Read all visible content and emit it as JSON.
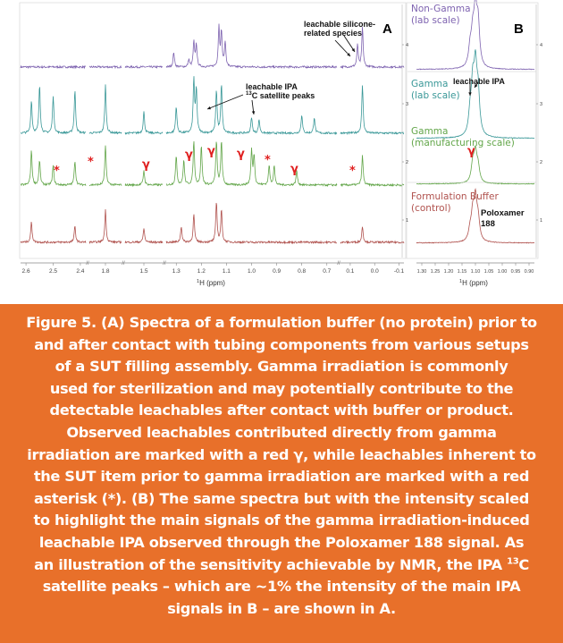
{
  "figure": {
    "panel_a_letter": "A",
    "panel_b_letter": "B",
    "annotations": {
      "silicone": [
        "leachable silicone-",
        "related species"
      ],
      "ipa_satellite": [
        "leachable IPA",
        "13",
        "C satellite peaks"
      ],
      "ipa_b": "leachable IPA",
      "poloxamer": [
        "Poloxamer",
        "188"
      ]
    },
    "trace_labels": {
      "non_gamma": [
        "Non-Gamma",
        "(lab scale)"
      ],
      "gamma_lab": [
        "Gamma",
        "(lab scale)"
      ],
      "gamma_mfg": [
        "Gamma",
        "(manufacturing scale)"
      ],
      "buffer": [
        "Formulation Buffer",
        "(control)"
      ]
    },
    "marks": {
      "asterisk": "*",
      "gamma": "γ"
    }
  },
  "chart_data": [
    {
      "type": "line",
      "panel": "A",
      "xlabel": "1H (ppm)",
      "x_ticks": [
        "2.6",
        "2.5",
        "2.4",
        "1.8",
        "1.5",
        "1.3",
        "1.2",
        "1.1",
        "1.0",
        "0.9",
        "0.8",
        "0.7",
        "0.1",
        "0.0",
        "-0.1"
      ],
      "x_axis_breaks": true,
      "x_reversed": true,
      "y_ticks": [
        "4",
        "3",
        "2",
        "1"
      ],
      "series": [
        {
          "color": "#7e63b0",
          "peaks_ppm": [
            [
              1.31,
              0.3
            ],
            [
              1.25,
              0.15
            ],
            [
              1.23,
              0.5
            ],
            [
              1.22,
              0.45
            ],
            [
              1.13,
              0.8
            ],
            [
              1.12,
              0.7
            ],
            [
              1.105,
              0.5
            ],
            [
              0.05,
              0.8
            ],
            [
              0.07,
              0.45
            ]
          ]
        },
        {
          "color": "#3a9898",
          "peaks_ppm": [
            [
              2.58,
              0.6
            ],
            [
              2.55,
              0.9
            ],
            [
              2.5,
              0.7
            ],
            [
              2.42,
              0.8
            ],
            [
              1.8,
              0.9
            ],
            [
              1.5,
              0.4
            ],
            [
              1.3,
              0.5
            ],
            [
              1.23,
              1.0
            ],
            [
              1.22,
              0.8
            ],
            [
              1.14,
              0.8
            ],
            [
              1.12,
              0.9
            ],
            [
              1.0,
              0.3
            ],
            [
              0.97,
              0.25
            ],
            [
              0.8,
              0.35
            ],
            [
              0.75,
              0.3
            ],
            [
              0.05,
              0.9
            ]
          ]
        },
        {
          "color": "#63a64a",
          "peaks_ppm": [
            [
              2.58,
              0.7
            ],
            [
              2.55,
              0.5
            ],
            [
              2.5,
              0.4
            ],
            [
              2.42,
              0.5
            ],
            [
              1.8,
              0.8
            ],
            [
              1.5,
              0.3
            ],
            [
              1.3,
              0.6
            ],
            [
              1.27,
              0.5
            ],
            [
              1.23,
              0.9
            ],
            [
              1.2,
              0.8
            ],
            [
              1.14,
              0.9
            ],
            [
              1.12,
              0.9
            ],
            [
              1.0,
              0.7
            ],
            [
              0.99,
              0.6
            ],
            [
              0.93,
              0.4
            ],
            [
              0.91,
              0.4
            ],
            [
              0.82,
              0.3
            ],
            [
              0.05,
              0.6
            ]
          ]
        },
        {
          "color": "#b0524e",
          "peaks_ppm": [
            [
              2.58,
              0.5
            ],
            [
              2.42,
              0.4
            ],
            [
              1.8,
              0.8
            ],
            [
              1.5,
              0.35
            ],
            [
              1.28,
              0.4
            ],
            [
              1.23,
              0.7
            ],
            [
              1.14,
              1.0
            ],
            [
              1.12,
              0.8
            ],
            [
              0.05,
              0.4
            ]
          ]
        }
      ]
    },
    {
      "type": "line",
      "panel": "B",
      "xlabel": "1H (ppm)",
      "x_ticks": [
        "1.30",
        "1.25",
        "1.20",
        "1.15",
        "1.10",
        "1.05",
        "1.00",
        "0.95",
        "0.90"
      ],
      "x_reversed": true,
      "y_ticks": [
        "4",
        "3",
        "2",
        "1"
      ],
      "series": [
        {
          "color": "#7e63b0",
          "peaks_ppm": [
            [
              1.11,
              0.5
            ],
            [
              1.1,
              0.9
            ],
            [
              1.09,
              0.7
            ],
            [
              1.12,
              0.3
            ]
          ]
        },
        {
          "color": "#3a9898",
          "peaks_ppm": [
            [
              1.11,
              0.7
            ],
            [
              1.1,
              0.95
            ],
            [
              1.09,
              0.6
            ],
            [
              1.12,
              0.3
            ]
          ]
        },
        {
          "color": "#63a64a",
          "peaks_ppm": [
            [
              1.11,
              0.5
            ],
            [
              1.1,
              0.8
            ],
            [
              1.09,
              0.4
            ]
          ]
        },
        {
          "color": "#b0524e",
          "peaks_ppm": [
            [
              1.11,
              0.5
            ],
            [
              1.1,
              0.8
            ],
            [
              1.09,
              0.4
            ],
            [
              1.12,
              0.2
            ]
          ]
        }
      ]
    }
  ],
  "caption": {
    "lines": [
      [
        "Figure 5. (A) Spectra of a formulation buffer (no protein) prior to"
      ],
      [
        "and after contact with tubing components from various setups"
      ],
      [
        "of a SUT filling assembly. Gamma irradiation is commonly"
      ],
      [
        "used for sterilization and may potentially contribute to the"
      ],
      [
        "detectable leachables after contact with buffer or product."
      ],
      [
        "Observed leachables contributed directly from gamma"
      ],
      [
        "irradiation are marked with a red γ, while leachables inherent to"
      ],
      [
        "the SUT item prior to gamma irradiation are marked with a red"
      ],
      [
        "asterisk (*). (B) The same spectra but with the intensity scaled"
      ],
      [
        "to highlight the main signals of the gamma irradiation-induced"
      ],
      [
        "leachable IPA observed through the Poloxamer 188 signal. As"
      ],
      [
        "an illustration of the sensitivity achievable by NMR, the IPA ",
        "13",
        "C"
      ],
      [
        "satellite peaks – which are ~1% the intensity of the main IPA"
      ],
      [
        "signals in B – are shown in A."
      ]
    ]
  }
}
